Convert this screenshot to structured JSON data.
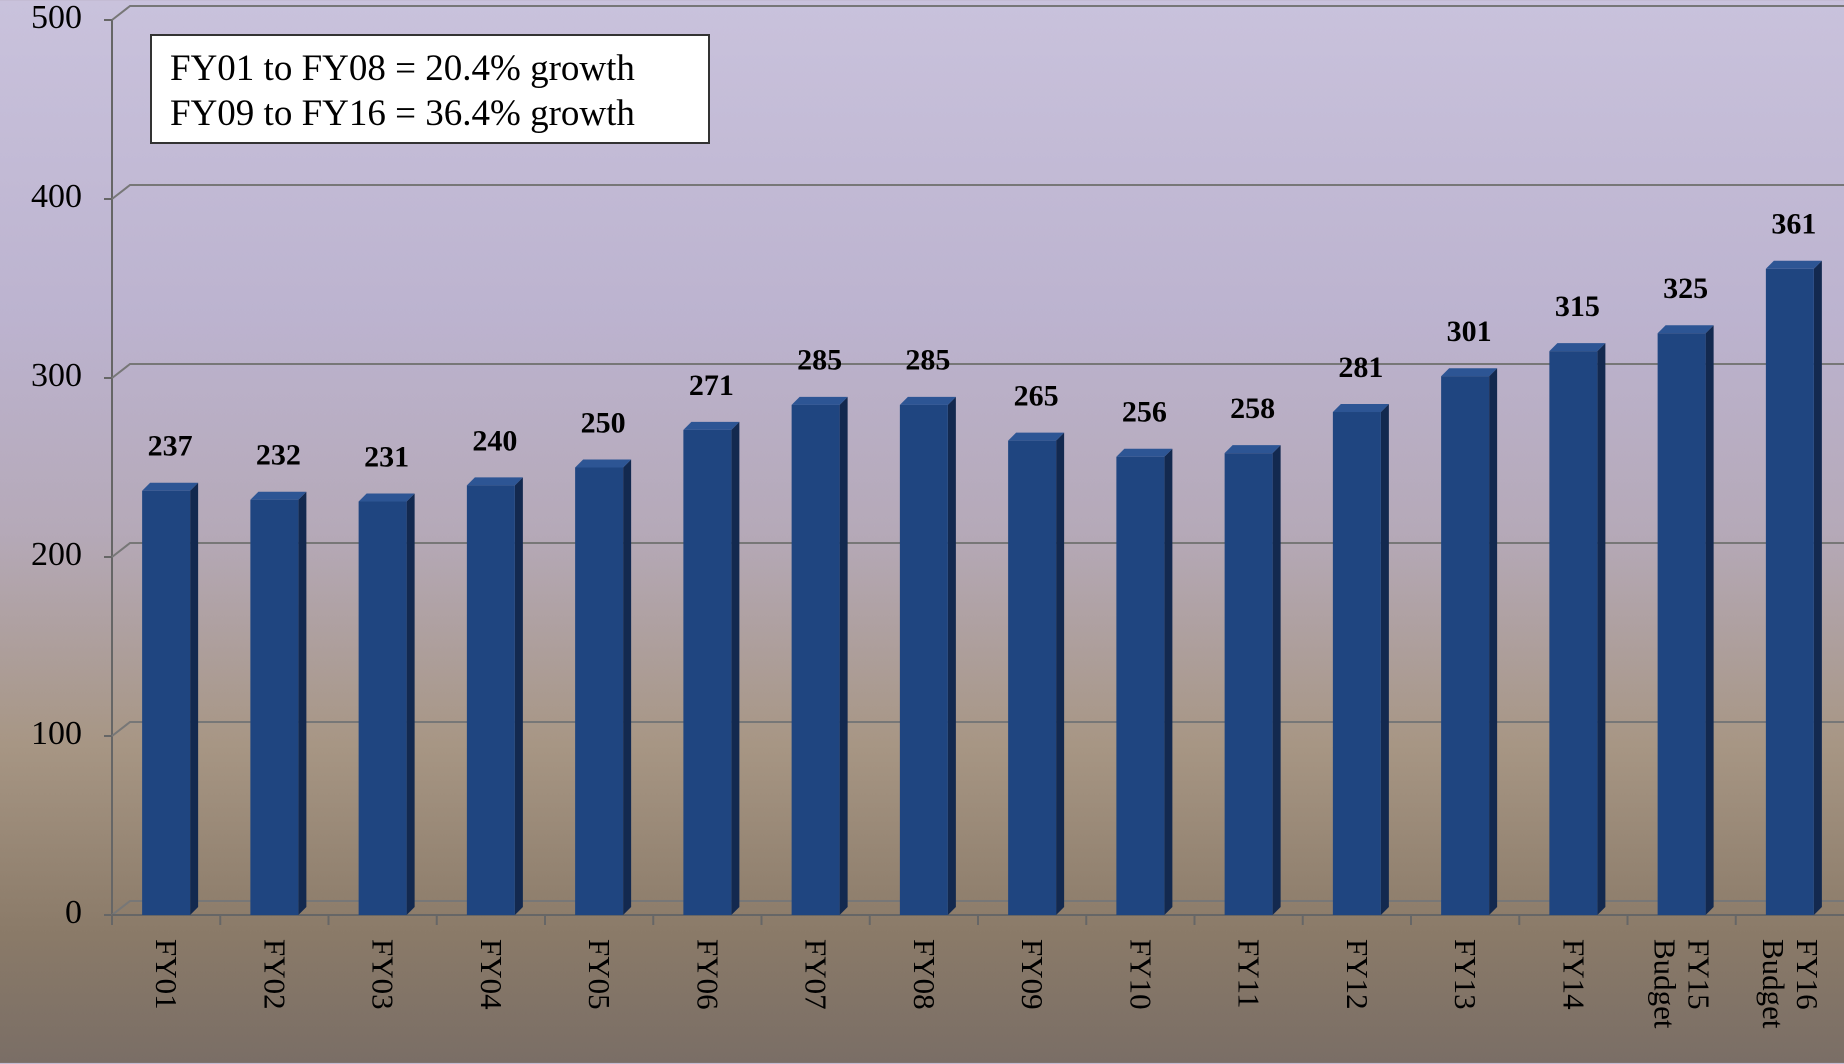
{
  "chart_data": {
    "type": "bar",
    "annotations": [
      "FY01 to FY08 = 20.4% growth",
      "FY09 to FY16 = 36.4% growth"
    ],
    "categories": [
      "FY01",
      "FY02",
      "FY03",
      "FY04",
      "FY05",
      "FY06",
      "FY07",
      "FY08",
      "FY09",
      "FY10",
      "FY11",
      "FY12",
      "FY13",
      "FY14",
      "FY15 Budget",
      "FY16 Budget"
    ],
    "values": [
      237,
      232,
      231,
      240,
      250,
      271,
      285,
      285,
      265,
      256,
      258,
      281,
      301,
      315,
      325,
      361
    ],
    "color": "#1f4580",
    "ylim": [
      0,
      500
    ],
    "yticks": [
      0,
      100,
      200,
      300,
      400,
      500
    ],
    "grid": true
  }
}
